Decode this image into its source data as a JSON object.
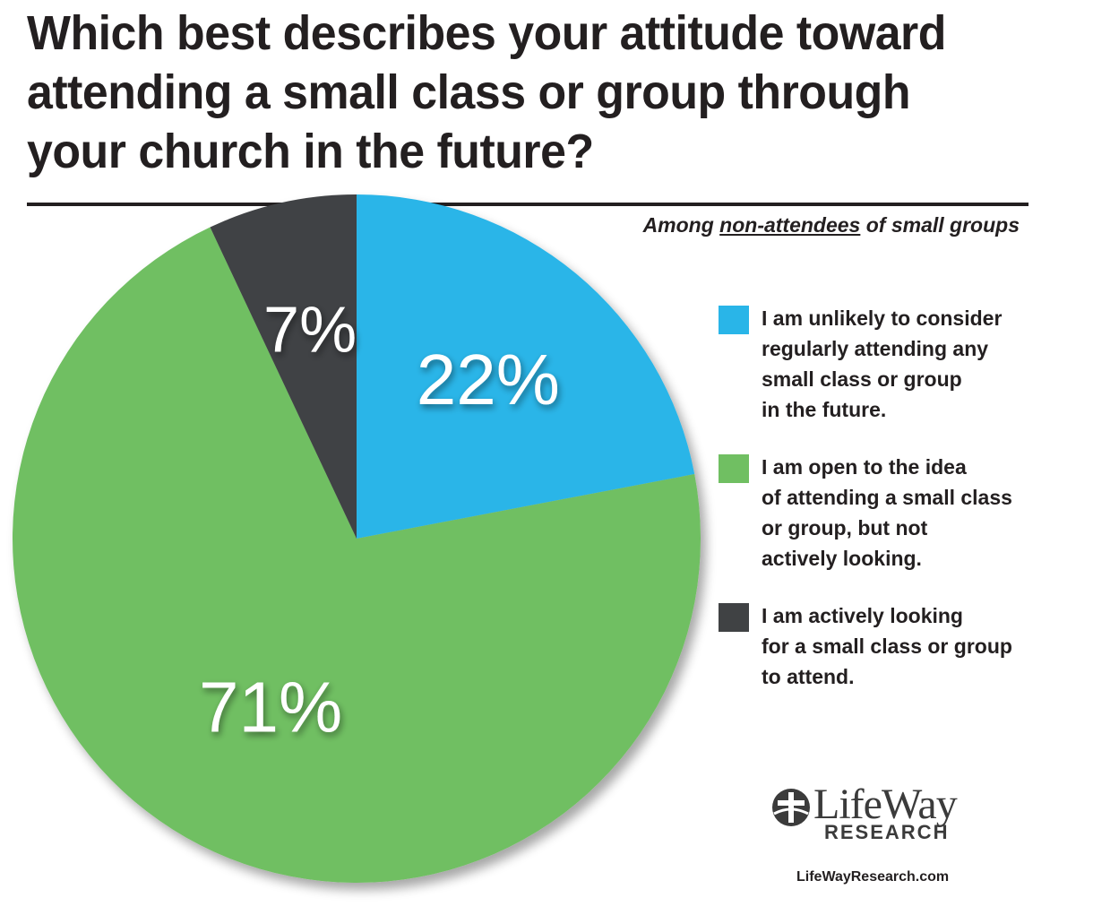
{
  "title": "Which best describes your attitude toward attending a small class or group through your church in the future?",
  "subtitle": {
    "prefix": "Among ",
    "underlined": "non-attendees",
    "suffix": " of small groups"
  },
  "chart_data": {
    "type": "pie",
    "categories": [
      "I am unlikely to consider regularly attending any small class or group in the future.",
      "I am open to the idea of attending a small class or group, but not actively looking.",
      "I am actively looking for a small class or group to attend."
    ],
    "values": [
      22,
      71,
      7
    ],
    "labels": [
      "22%",
      "71%",
      "7%"
    ],
    "colors": [
      "#29b5e8",
      "#70bf62",
      "#404244"
    ],
    "start_angle": "12 o'clock, clockwise",
    "legend_placement": "right"
  },
  "legend": [
    {
      "text": "I am unlikely to consider\nregularly attending any\nsmall class or group\nin the future.",
      "color": "#29b5e8"
    },
    {
      "text": "I am open to the idea\nof attending a small class\nor group, but not\nactively looking.",
      "color": "#70bf62"
    },
    {
      "text": "I am actively looking\nfor a small class or group\nto attend.",
      "color": "#404244"
    }
  ],
  "logo": {
    "word": "LifeWay",
    "sub": "RESEARCH",
    "icon": "lifeway-globe-cross-icon"
  },
  "website": "LifeWayResearch.com"
}
